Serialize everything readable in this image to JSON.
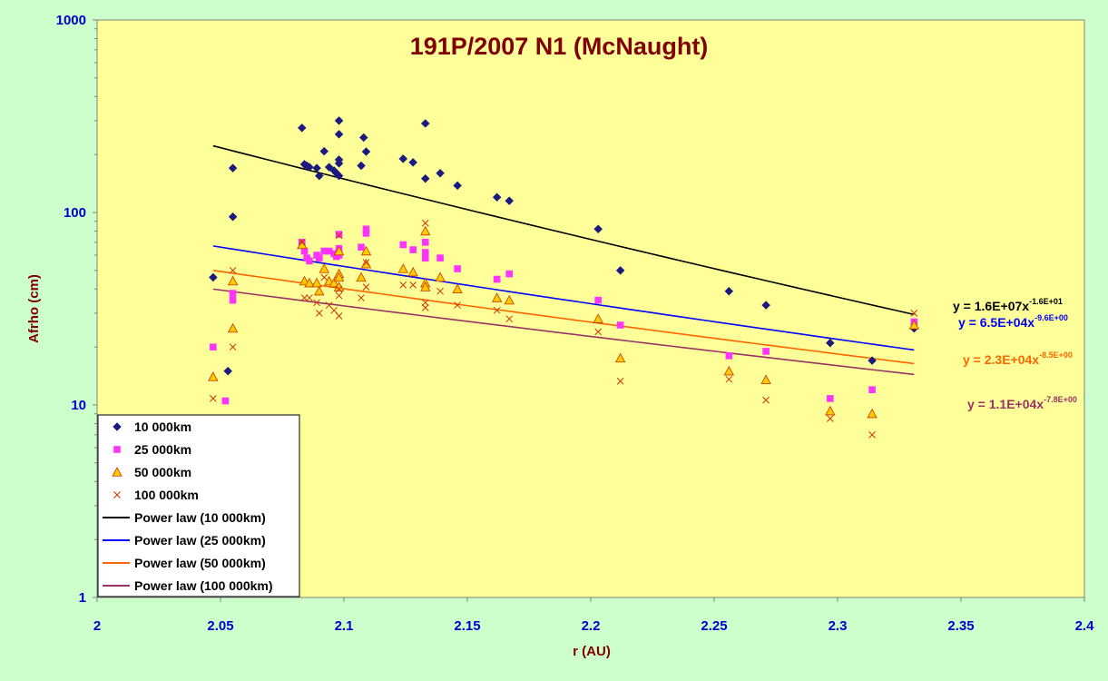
{
  "chart_data": {
    "type": "scatter",
    "title": "191P/2007 N1 (McNaught)",
    "xlabel": "r (AU)",
    "ylabel": "Afrho (cm)",
    "xlim": [
      2,
      2.4
    ],
    "ylim": [
      1,
      1000
    ],
    "yscale": "log",
    "xticks": [
      "2",
      "2.05",
      "2.1",
      "2.15",
      "2.2",
      "2.25",
      "2.3",
      "2.35",
      "2.4"
    ],
    "yticks": [
      "1",
      "10",
      "100",
      "1000"
    ],
    "grid": false,
    "legend_position": "bottom-left",
    "colors": {
      "background_outer": "#ccffcc",
      "plot_area": "#ffff99",
      "axis_text": "#0000cc",
      "title_text": "#800000"
    },
    "series": [
      {
        "name": "10 000km",
        "marker": "diamond",
        "color": "#1a1a80",
        "points": [
          [
            2.047,
            46
          ],
          [
            2.053,
            15
          ],
          [
            2.055,
            170
          ],
          [
            2.055,
            95
          ],
          [
            2.083,
            275
          ],
          [
            2.084,
            178
          ],
          [
            2.085,
            175
          ],
          [
            2.086,
            172
          ],
          [
            2.089,
            170
          ],
          [
            2.09,
            155
          ],
          [
            2.092,
            208
          ],
          [
            2.094,
            172
          ],
          [
            2.096,
            165
          ],
          [
            2.097,
            160
          ],
          [
            2.098,
            300
          ],
          [
            2.098,
            255
          ],
          [
            2.098,
            188
          ],
          [
            2.098,
            180
          ],
          [
            2.098,
            155
          ],
          [
            2.107,
            175
          ],
          [
            2.108,
            245
          ],
          [
            2.109,
            207
          ],
          [
            2.124,
            190
          ],
          [
            2.128,
            182
          ],
          [
            2.133,
            290
          ],
          [
            2.133,
            150
          ],
          [
            2.139,
            160
          ],
          [
            2.146,
            138
          ],
          [
            2.162,
            120
          ],
          [
            2.167,
            115
          ],
          [
            2.203,
            82
          ],
          [
            2.212,
            50
          ],
          [
            2.256,
            39
          ],
          [
            2.271,
            33
          ],
          [
            2.297,
            21
          ],
          [
            2.314,
            17
          ],
          [
            2.331,
            25
          ]
        ]
      },
      {
        "name": "25 000km",
        "marker": "square",
        "color": "#ff33ff",
        "points": [
          [
            2.047,
            20
          ],
          [
            2.052,
            10.5
          ],
          [
            2.055,
            38
          ],
          [
            2.055,
            35
          ],
          [
            2.083,
            70
          ],
          [
            2.084,
            63
          ],
          [
            2.085,
            58
          ],
          [
            2.086,
            56
          ],
          [
            2.089,
            60
          ],
          [
            2.09,
            58
          ],
          [
            2.092,
            63
          ],
          [
            2.094,
            63
          ],
          [
            2.096,
            61
          ],
          [
            2.097,
            59
          ],
          [
            2.098,
            77
          ],
          [
            2.098,
            65
          ],
          [
            2.098,
            60
          ],
          [
            2.107,
            66
          ],
          [
            2.109,
            82
          ],
          [
            2.109,
            78
          ],
          [
            2.124,
            68
          ],
          [
            2.128,
            64
          ],
          [
            2.133,
            70
          ],
          [
            2.133,
            62
          ],
          [
            2.133,
            58
          ],
          [
            2.139,
            58
          ],
          [
            2.146,
            51
          ],
          [
            2.162,
            45
          ],
          [
            2.167,
            48
          ],
          [
            2.203,
            35
          ],
          [
            2.212,
            26
          ],
          [
            2.256,
            18
          ],
          [
            2.271,
            19
          ],
          [
            2.297,
            10.8
          ],
          [
            2.314,
            12
          ],
          [
            2.331,
            27
          ]
        ]
      },
      {
        "name": "50 000km",
        "marker": "triangle",
        "color": "#ffcc00",
        "points": [
          [
            2.047,
            14
          ],
          [
            2.055,
            44
          ],
          [
            2.055,
            25
          ],
          [
            2.083,
            68
          ],
          [
            2.084,
            44
          ],
          [
            2.086,
            43
          ],
          [
            2.089,
            43
          ],
          [
            2.09,
            39
          ],
          [
            2.092,
            51
          ],
          [
            2.094,
            44
          ],
          [
            2.096,
            43
          ],
          [
            2.098,
            48
          ],
          [
            2.098,
            46
          ],
          [
            2.098,
            41
          ],
          [
            2.098,
            63
          ],
          [
            2.107,
            46
          ],
          [
            2.109,
            63
          ],
          [
            2.109,
            54
          ],
          [
            2.124,
            51
          ],
          [
            2.128,
            49
          ],
          [
            2.133,
            80
          ],
          [
            2.133,
            43
          ],
          [
            2.133,
            41
          ],
          [
            2.139,
            46
          ],
          [
            2.146,
            40
          ],
          [
            2.162,
            36
          ],
          [
            2.167,
            35
          ],
          [
            2.203,
            28
          ],
          [
            2.212,
            17.5
          ],
          [
            2.256,
            15
          ],
          [
            2.271,
            13.5
          ],
          [
            2.297,
            9.3
          ],
          [
            2.314,
            9
          ],
          [
            2.331,
            26
          ]
        ]
      },
      {
        "name": "100 000km",
        "marker": "x",
        "color": "#cc3300",
        "points": [
          [
            2.047,
            10.8
          ],
          [
            2.055,
            50
          ],
          [
            2.055,
            20
          ],
          [
            2.083,
            70
          ],
          [
            2.084,
            36
          ],
          [
            2.086,
            36
          ],
          [
            2.089,
            34
          ],
          [
            2.09,
            30
          ],
          [
            2.092,
            46
          ],
          [
            2.094,
            33
          ],
          [
            2.096,
            31
          ],
          [
            2.098,
            40
          ],
          [
            2.098,
            37
          ],
          [
            2.098,
            29
          ],
          [
            2.098,
            76
          ],
          [
            2.107,
            36
          ],
          [
            2.109,
            55
          ],
          [
            2.109,
            41
          ],
          [
            2.124,
            42
          ],
          [
            2.128,
            42
          ],
          [
            2.133,
            88
          ],
          [
            2.133,
            34
          ],
          [
            2.133,
            32
          ],
          [
            2.139,
            39
          ],
          [
            2.146,
            33
          ],
          [
            2.162,
            31
          ],
          [
            2.167,
            28
          ],
          [
            2.203,
            24
          ],
          [
            2.212,
            13.3
          ],
          [
            2.256,
            13.6
          ],
          [
            2.271,
            10.6
          ],
          [
            2.297,
            8.5
          ],
          [
            2.314,
            7
          ],
          [
            2.331,
            30
          ]
        ]
      }
    ],
    "trendlines": [
      {
        "name": "Power law (10 000km)",
        "color": "#000000",
        "x_range": [
          2.047,
          2.331
        ],
        "y_start": 222,
        "y_end": 29.5,
        "equation_main": "y = 1.6E+07x",
        "equation_exp": "-1.6E+01"
      },
      {
        "name": "Power law (25 000km)",
        "color": "#0000ff",
        "x_range": [
          2.047,
          2.331
        ],
        "y_start": 67,
        "y_end": 19.3,
        "equation_main": "y = 6.5E+04x",
        "equation_exp": "-9.6E+00"
      },
      {
        "name": "Power law (50 000km)",
        "color": "#ff6600",
        "x_range": [
          2.047,
          2.331
        ],
        "y_start": 50,
        "y_end": 16.4,
        "equation_main": "y = 2.3E+04x",
        "equation_exp": "-8.5E+00"
      },
      {
        "name": "Power law (100 000km)",
        "color": "#993366",
        "x_range": [
          2.047,
          2.331
        ],
        "y_start": 40,
        "y_end": 14.4,
        "equation_main": "y = 1.1E+04x",
        "equation_exp": "-7.8E+00"
      }
    ]
  }
}
